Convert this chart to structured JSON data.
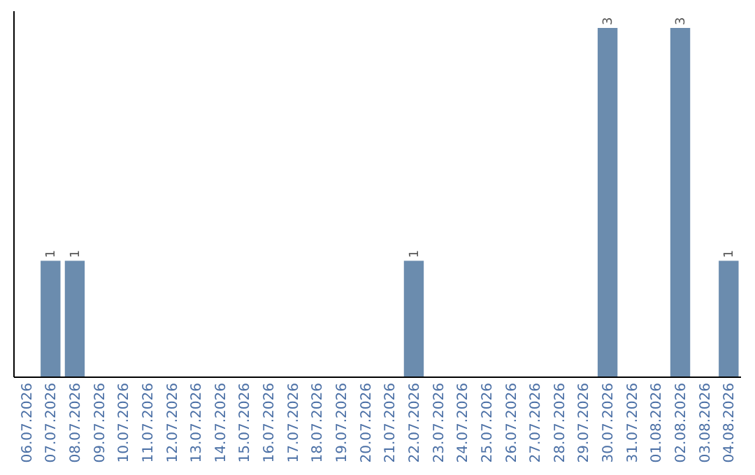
{
  "chart_data": {
    "type": "bar",
    "categories": [
      "06.07.2026",
      "07.07.2026",
      "08.07.2026",
      "09.07.2026",
      "10.07.2026",
      "11.07.2026",
      "12.07.2026",
      "13.07.2026",
      "14.07.2026",
      "15.07.2026",
      "16.07.2026",
      "17.07.2026",
      "18.07.2026",
      "19.07.2026",
      "20.07.2026",
      "21.07.2026",
      "22.07.2026",
      "23.07.2026",
      "24.07.2026",
      "25.07.2026",
      "26.07.2026",
      "27.07.2026",
      "28.07.2026",
      "29.07.2026",
      "30.07.2026",
      "31.07.2026",
      "01.08.2026",
      "02.08.2026",
      "03.08.2026",
      "04.08.2026"
    ],
    "values": [
      0,
      1,
      1,
      0,
      0,
      0,
      0,
      0,
      0,
      0,
      0,
      0,
      0,
      0,
      0,
      0,
      1,
      0,
      0,
      0,
      0,
      0,
      0,
      0,
      3,
      0,
      0,
      3,
      0,
      1
    ],
    "value_labels": [
      null,
      "1",
      "1",
      null,
      null,
      null,
      null,
      null,
      null,
      null,
      null,
      null,
      null,
      null,
      null,
      null,
      "1",
      null,
      null,
      null,
      null,
      null,
      null,
      null,
      "3",
      null,
      null,
      "3",
      null,
      "1"
    ],
    "color": "#6b8cae"
  }
}
